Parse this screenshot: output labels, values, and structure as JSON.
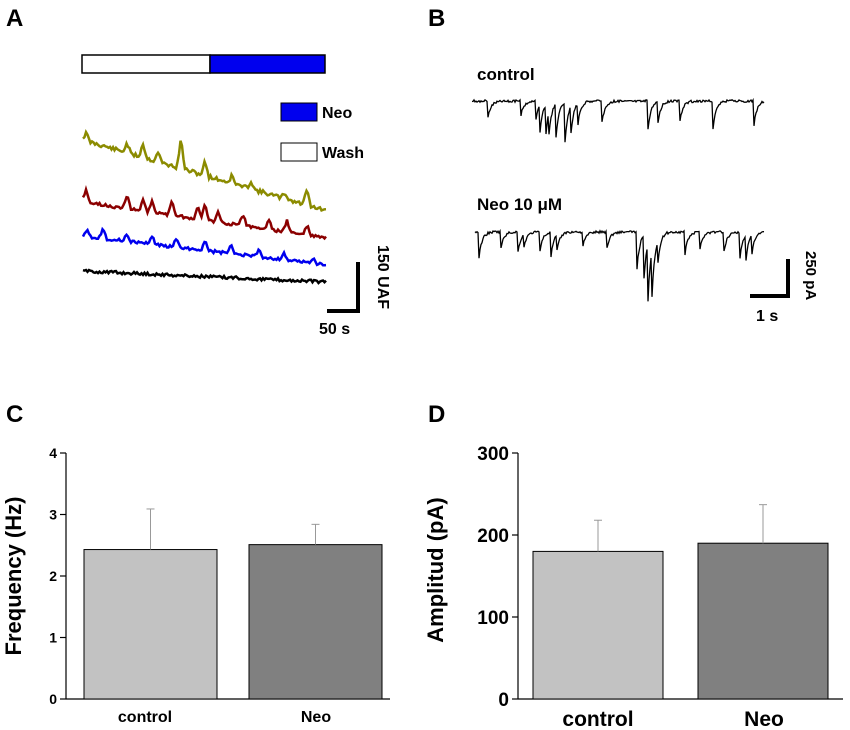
{
  "panels": {
    "a": {
      "label": "A"
    },
    "b": {
      "label": "B"
    },
    "c": {
      "label": "C"
    },
    "d": {
      "label": "D"
    }
  },
  "panel_a": {
    "legend": {
      "neo": "Neo",
      "wash": "Wash"
    },
    "colors": {
      "neo": "#0000ee",
      "trace1": "#8b8b00",
      "trace2": "#8b0000",
      "trace3": "#0000ee",
      "trace4": "#000000"
    },
    "scale": {
      "time": "50 s",
      "amplitude": "150 UAF"
    }
  },
  "panel_b": {
    "trace_labels": {
      "control": "control",
      "neo": "Neo 10 μM"
    },
    "scale": {
      "time": "1 s",
      "amplitude": "250 pA"
    }
  },
  "chart_data": [
    {
      "type": "bar",
      "panel": "C",
      "categories": [
        "control",
        "Neo"
      ],
      "values": [
        2.43,
        2.51
      ],
      "errors": [
        0.66,
        0.33
      ],
      "colors": [
        "#c2c2c2",
        "#808080"
      ],
      "ylabel": "Frequency (Hz)",
      "ylim": [
        0,
        4
      ],
      "yticks": [
        "0",
        "1",
        "2",
        "3",
        "4"
      ]
    },
    {
      "type": "bar",
      "panel": "D",
      "categories": [
        "control",
        "Neo"
      ],
      "values": [
        180,
        190
      ],
      "errors": [
        38,
        47
      ],
      "colors": [
        "#c2c2c2",
        "#808080"
      ],
      "ylabel": "Amplitud (pA)",
      "ylim": [
        0,
        300
      ],
      "yticks": [
        "0",
        "100",
        "200",
        "300"
      ]
    }
  ]
}
